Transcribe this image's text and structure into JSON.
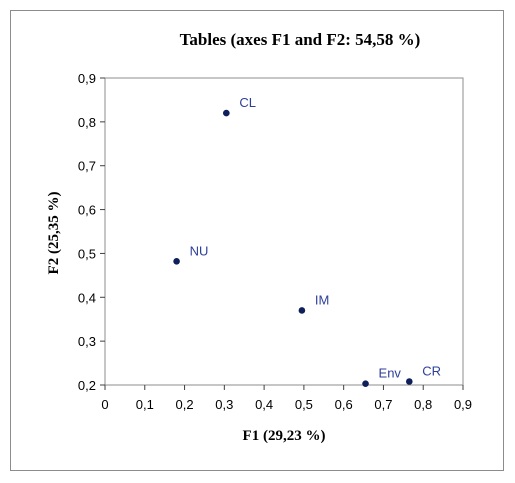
{
  "chart_data": {
    "type": "scatter",
    "title": "Tables (axes F1 and F2: 54,58 %)",
    "xlabel": "F1 (29,23 %)",
    "ylabel": "F2 (25,35 %)",
    "xlim": [
      0,
      0.9
    ],
    "ylim": [
      0.2,
      0.9
    ],
    "x_ticks": [
      "0",
      "0,1",
      "0,2",
      "0,3",
      "0,4",
      "0,5",
      "0,6",
      "0,7",
      "0,8",
      "0,9"
    ],
    "y_ticks": [
      "0,2",
      "0,3",
      "0,4",
      "0,5",
      "0,6",
      "0,7",
      "0,8",
      "0,9"
    ],
    "grid": false,
    "legend": "none",
    "points": [
      {
        "label": "CL",
        "x": 0.305,
        "y": 0.82
      },
      {
        "label": "NU",
        "x": 0.18,
        "y": 0.482
      },
      {
        "label": "IM",
        "x": 0.495,
        "y": 0.37
      },
      {
        "label": "Env",
        "x": 0.655,
        "y": 0.203
      },
      {
        "label": "CR",
        "x": 0.765,
        "y": 0.208
      }
    ],
    "colors": {
      "points": "#0f1f5c",
      "labels": "#2e3f9a",
      "axis": "#404040",
      "text": "#000000"
    }
  }
}
